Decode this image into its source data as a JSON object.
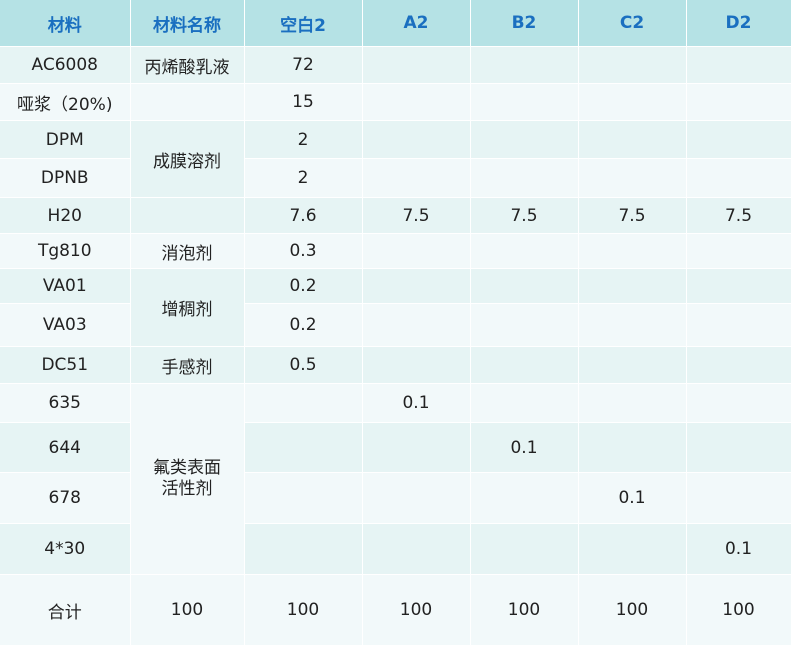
{
  "headers": [
    "材料",
    "材料名称",
    "空白2",
    "A2",
    "B2",
    "C2",
    "D2"
  ],
  "rows": [
    {
      "material": "AC6008",
      "blank2": "72",
      "a2": "",
      "b2": "",
      "c2": "",
      "d2": ""
    },
    {
      "material": "哑浆（20%)",
      "blank2": "15",
      "a2": "",
      "b2": "",
      "c2": "",
      "d2": ""
    },
    {
      "material": "DPM",
      "blank2": "2",
      "a2": "",
      "b2": "",
      "c2": "",
      "d2": ""
    },
    {
      "material": "DPNB",
      "blank2": "2",
      "a2": "",
      "b2": "",
      "c2": "",
      "d2": ""
    },
    {
      "material": "H20",
      "blank2": "7.6",
      "a2": "7.5",
      "b2": "7.5",
      "c2": "7.5",
      "d2": "7.5"
    },
    {
      "material": "Tg810",
      "blank2": "0.3",
      "a2": "",
      "b2": "",
      "c2": "",
      "d2": ""
    },
    {
      "material": "VA01",
      "blank2": "0.2",
      "a2": "",
      "b2": "",
      "c2": "",
      "d2": ""
    },
    {
      "material": "VA03",
      "blank2": "0.2",
      "a2": "",
      "b2": "",
      "c2": "",
      "d2": ""
    },
    {
      "material": "DC51",
      "blank2": "0.5",
      "a2": "",
      "b2": "",
      "c2": "",
      "d2": ""
    },
    {
      "material": "635",
      "blank2": "",
      "a2": "0.1",
      "b2": "",
      "c2": "",
      "d2": ""
    },
    {
      "material": "644",
      "blank2": "",
      "a2": "",
      "b2": "0.1",
      "c2": "",
      "d2": ""
    },
    {
      "material": "678",
      "blank2": "",
      "a2": "",
      "b2": "",
      "c2": "0.1",
      "d2": ""
    },
    {
      "material": "4*30",
      "blank2": "",
      "a2": "",
      "b2": "",
      "c2": "",
      "d2": "0.1"
    },
    {
      "material": "合计",
      "blank2": "100",
      "a2": "100",
      "b2": "100",
      "c2": "100",
      "d2": "100"
    }
  ],
  "names": {
    "acrylic_emulsion": "丙烯酸乳液",
    "film_solvent": "成膜溶剂",
    "defoamer": "消泡剂",
    "thickener": "增稠剂",
    "hand_feel": "手感剂",
    "fluoro_surfactant_line1": "氟类表面",
    "fluoro_surfactant_line2": "活性剂",
    "total_name": "100"
  },
  "colors": {
    "header_bg": "#b5e2e5",
    "header_text": "#1a6fc0",
    "row_odd": "#e6f4f4",
    "row_even": "#f2f9fa"
  }
}
